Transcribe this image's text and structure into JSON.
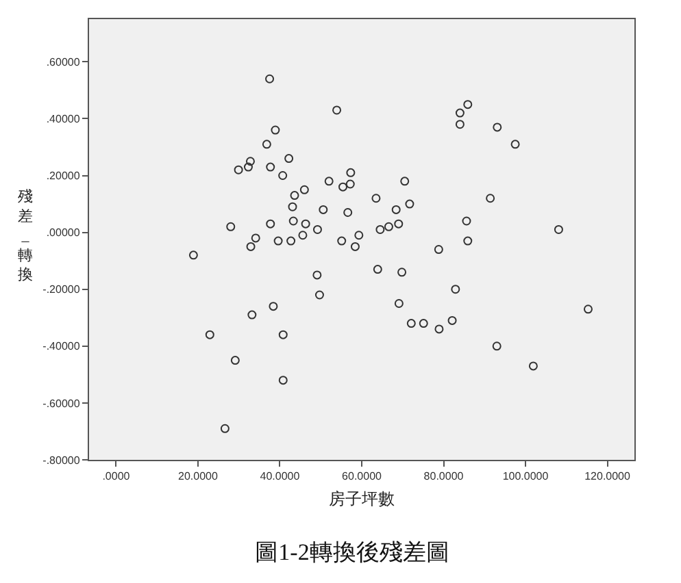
{
  "chart_data": {
    "type": "scatter",
    "title": "圖1-2轉換後殘差圖",
    "xlabel": "房子坪數",
    "ylabel": "殘差_轉換",
    "x": [
      37.5,
      53.9,
      38.9,
      36.8,
      32.8,
      42.2,
      29.9,
      32.3,
      37.7,
      40.7,
      46.0,
      43.6,
      52.0,
      43.1,
      50.6,
      28.0,
      37.7,
      43.3,
      46.3,
      49.2,
      34.1,
      32.9,
      39.6,
      42.7,
      45.6,
      55.1,
      18.9,
      49.1,
      49.7,
      38.4,
      33.2,
      22.9,
      40.8,
      29.1,
      40.8,
      26.6,
      85.9,
      84.0,
      84.0,
      93.1,
      97.5,
      57.3,
      57.2,
      55.4,
      70.5,
      63.5,
      91.4,
      56.6,
      71.7,
      68.4,
      85.6,
      64.5,
      66.6,
      69.0,
      108.1,
      59.3,
      58.4,
      85.9,
      78.8,
      63.9,
      69.8,
      82.9,
      69.1,
      72.1,
      75.1,
      78.9,
      82.1,
      115.3,
      93.0,
      101.9
    ],
    "values": [
      0.54,
      0.43,
      0.36,
      0.31,
      0.25,
      0.26,
      0.22,
      0.23,
      0.23,
      0.2,
      0.15,
      0.13,
      0.18,
      0.09,
      0.08,
      0.02,
      0.03,
      0.04,
      0.03,
      0.01,
      -0.02,
      -0.05,
      -0.03,
      -0.03,
      -0.01,
      -0.03,
      -0.08,
      -0.15,
      -0.22,
      -0.26,
      -0.29,
      -0.36,
      -0.36,
      -0.45,
      -0.52,
      -0.69,
      0.45,
      0.42,
      0.38,
      0.37,
      0.31,
      0.21,
      0.17,
      0.16,
      0.18,
      0.12,
      0.12,
      0.07,
      0.1,
      0.08,
      0.04,
      0.01,
      0.02,
      0.03,
      0.01,
      -0.01,
      -0.05,
      -0.03,
      -0.06,
      -0.13,
      -0.14,
      -0.2,
      -0.25,
      -0.32,
      -0.32,
      -0.34,
      -0.31,
      -0.27,
      -0.4,
      -0.47
    ],
    "color": "#333333",
    "marker": "circle",
    "grid": false,
    "xlim": [
      -6.6,
      126.6
    ],
    "xticks": [
      {
        "value": 0,
        "label": ".0000"
      },
      {
        "value": 20,
        "label": "20.0000"
      },
      {
        "value": 40,
        "label": "40.0000"
      },
      {
        "value": 60,
        "label": "60.0000"
      },
      {
        "value": 80,
        "label": "80.0000"
      },
      {
        "value": 100,
        "label": "100.0000"
      },
      {
        "value": 120,
        "label": "120.0000"
      }
    ],
    "ylim": [
      -0.8,
      0.75
    ],
    "yticks": [
      {
        "value": -0.8,
        "label": "-.80000"
      },
      {
        "value": -0.6,
        "label": "-.60000"
      },
      {
        "value": -0.4,
        "label": "-.40000"
      },
      {
        "value": -0.2,
        "label": "-.20000"
      },
      {
        "value": 0,
        "label": ".00000"
      },
      {
        "value": 0.2,
        "label": ".20000"
      },
      {
        "value": 0.4,
        "label": ".40000"
      },
      {
        "value": 0.6,
        "label": ".60000"
      }
    ]
  }
}
